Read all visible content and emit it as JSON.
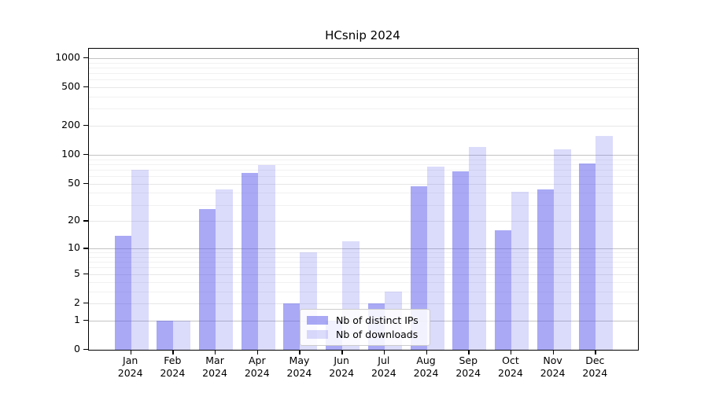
{
  "chart_data": {
    "type": "bar",
    "title": "HCsnip 2024",
    "categories": [
      "Jan",
      "Feb",
      "Mar",
      "Apr",
      "May",
      "Jun",
      "Jul",
      "Aug",
      "Sep",
      "Oct",
      "Nov",
      "Dec"
    ],
    "category_year": "2024",
    "series": [
      {
        "name": "Nb of distinct IPs",
        "color": "rgba(90,90,235,0.52)",
        "values": [
          14,
          1,
          27,
          65,
          2,
          1,
          2,
          47,
          67,
          16,
          44,
          81
        ]
      },
      {
        "name": "Nb of downloads",
        "color": "rgba(90,90,235,0.22)",
        "values": [
          70,
          1,
          44,
          78,
          9,
          12,
          3,
          75,
          120,
          41,
          115,
          158
        ]
      }
    ],
    "yscale": "log1p",
    "yticks": [
      0,
      1,
      2,
      5,
      10,
      20,
      50,
      100,
      200,
      500,
      1000
    ],
    "minor_gridlines": [
      3,
      4,
      6,
      7,
      8,
      9,
      30,
      40,
      60,
      70,
      80,
      90,
      300,
      400,
      600,
      700,
      800,
      900
    ],
    "ylim": [
      0,
      1250
    ],
    "grid": true,
    "legend_position": "lower center"
  }
}
